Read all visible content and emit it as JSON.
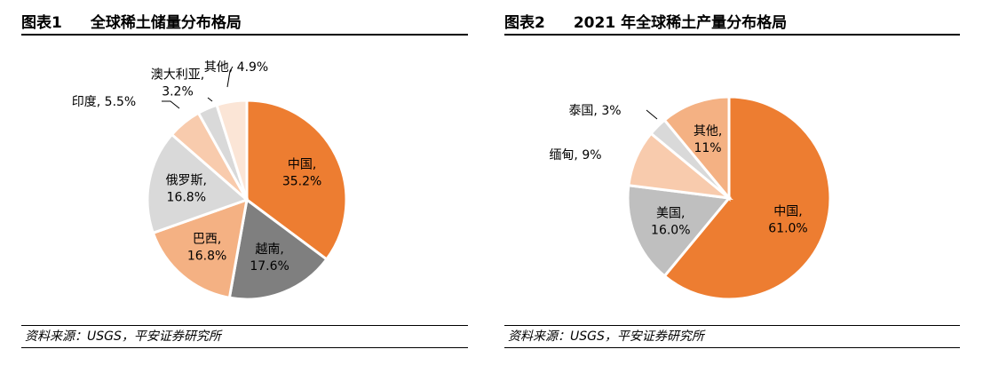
{
  "figures": [
    {
      "label": "图表1",
      "title": "全球稀土储量分布格局",
      "source": "资料来源：USGS，平安证券研究所"
    },
    {
      "label": "图表2",
      "title": "2021 年全球稀土产量分布格局",
      "source": "资料来源：USGS，平安证券研究所"
    }
  ],
  "chart_data": [
    {
      "type": "pie",
      "title": "全球稀土储量分布格局",
      "start_angle_deg": 0,
      "direction": "clockwise",
      "slices": [
        {
          "name": "中国",
          "value": 35.2,
          "label": [
            "中国,",
            "35.2%"
          ],
          "color": "#ED7D31",
          "text_color": "#000000"
        },
        {
          "name": "越南",
          "value": 17.6,
          "label": [
            "越南,",
            "17.6%"
          ],
          "color": "#7F7F7F",
          "text_color": "#000000"
        },
        {
          "name": "巴西",
          "value": 16.8,
          "label": [
            "巴西,",
            "16.8%"
          ],
          "color": "#F4B183",
          "text_color": "#000000"
        },
        {
          "name": "俄罗斯",
          "value": 16.8,
          "label": [
            "俄罗斯,",
            "16.8%"
          ],
          "color": "#D9D9D9",
          "text_color": "#000000"
        },
        {
          "name": "印度",
          "value": 5.5,
          "label": [
            "印度, 5.5%"
          ],
          "color": "#F8CBAD",
          "text_color": "#000000",
          "outside": true
        },
        {
          "name": "澳大利亚",
          "value": 3.2,
          "label": [
            "澳大利亚,",
            "3.2%"
          ],
          "color": "#D9D9D9",
          "text_color": "#000000",
          "outside": true
        },
        {
          "name": "其他",
          "value": 4.9,
          "label": [
            "其他, 4.9%"
          ],
          "color": "#FBE5D6",
          "text_color": "#000000",
          "outside": true
        }
      ]
    },
    {
      "type": "pie",
      "title": "2021 年全球稀土产量分布格局",
      "start_angle_deg": 0,
      "direction": "clockwise",
      "slices": [
        {
          "name": "中国",
          "value": 61.0,
          "label": [
            "中国,",
            "61.0%"
          ],
          "color": "#ED7D31",
          "text_color": "#000000"
        },
        {
          "name": "美国",
          "value": 16.0,
          "label": [
            "美国,",
            "16.0%"
          ],
          "color": "#BFBFBF",
          "text_color": "#000000"
        },
        {
          "name": "缅甸",
          "value": 9,
          "label": [
            "缅甸, 9%"
          ],
          "color": "#F8CBAD",
          "text_color": "#000000",
          "outside": true
        },
        {
          "name": "泰国",
          "value": 3,
          "label": [
            "泰国, 3%"
          ],
          "color": "#D9D9D9",
          "text_color": "#000000",
          "outside": true
        },
        {
          "name": "其他",
          "value": 11,
          "label": [
            "其他,",
            "11%"
          ],
          "color": "#F4B183",
          "text_color": "#000000"
        }
      ]
    }
  ]
}
